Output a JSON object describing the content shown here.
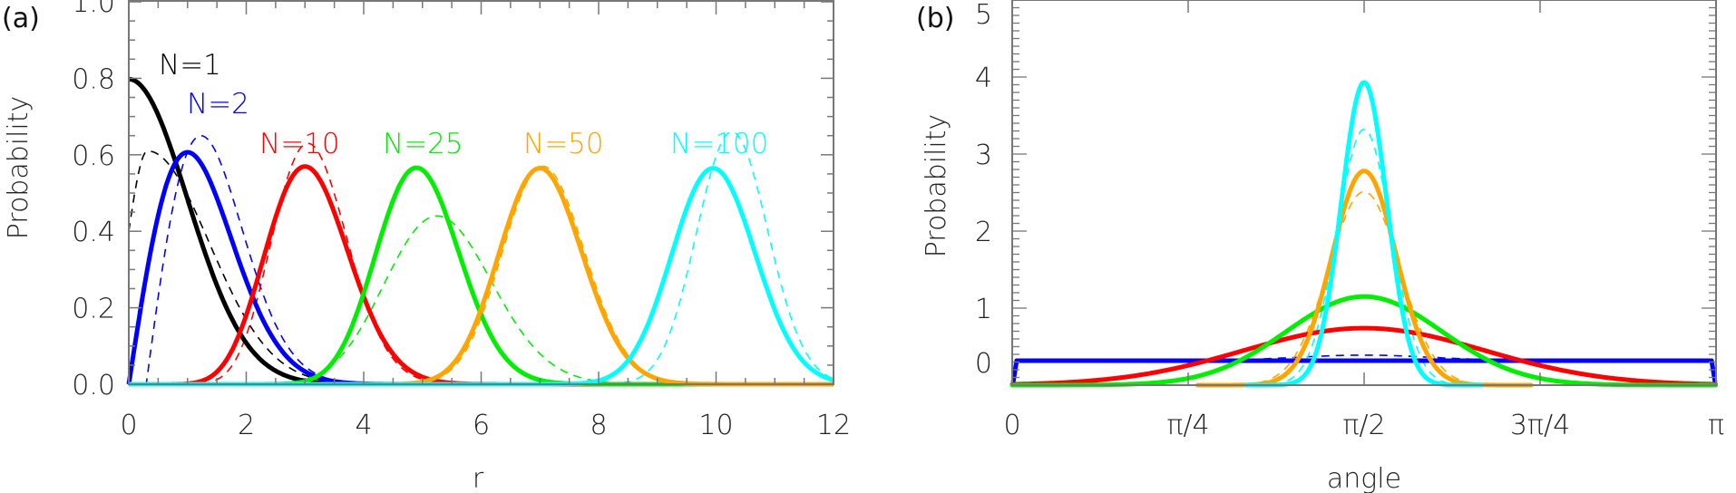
{
  "chart_data": [
    {
      "type": "line",
      "panel_label": "(a)",
      "xlabel": "r",
      "ylabel": "Probability",
      "xlim": [
        0,
        12
      ],
      "ylim": [
        0,
        1.0
      ],
      "xticks": [
        "0",
        "2",
        "4",
        "6",
        "8",
        "10",
        "12"
      ],
      "xtick_values": [
        0,
        2,
        4,
        6,
        8,
        10,
        12
      ],
      "yticks": [
        "0.0",
        "0.2",
        "0.4",
        "0.6",
        "0.8",
        "1.0"
      ],
      "ytick_values": [
        0,
        0.2,
        0.4,
        0.6,
        0.8,
        1.0
      ],
      "grid": false,
      "series": [
        {
          "name": "N=1",
          "label": "N=1",
          "N": 1,
          "color": "#000000",
          "solid": {
            "peak_x": 0.0,
            "peak_y": 0.8
          },
          "dashed": {
            "peak_x": 0.32,
            "peak_y": 0.61,
            "y_at_0": 0.4
          }
        },
        {
          "name": "N=2",
          "label": "N=2",
          "N": 2,
          "color": "#0000ff",
          "solid": {
            "peak_x": 1.0,
            "peak_y": 0.61
          },
          "dashed": {
            "peak_x": 1.23,
            "peak_y": 0.65
          }
        },
        {
          "name": "N=10",
          "label": "N=10",
          "N": 10,
          "color": "#ff0000",
          "solid": {
            "peak_x": 3.0,
            "peak_y": 0.57
          },
          "dashed": {
            "peak_x": 3.05,
            "peak_y": 0.63
          }
        },
        {
          "name": "N=25",
          "label": "N=25",
          "N": 25,
          "color": "#00ee00",
          "solid": {
            "peak_x": 4.9,
            "peak_y": 0.57
          },
          "dashed": {
            "peak_x": 5.25,
            "peak_y": 0.44
          }
        },
        {
          "name": "N=50",
          "label": "N=50",
          "N": 50,
          "color": "#ffa500",
          "solid": {
            "peak_x": 7.0,
            "peak_y": 0.57
          },
          "dashed": {
            "peak_x": 7.05,
            "peak_y": 0.57
          }
        },
        {
          "name": "N=100",
          "label": "N=100",
          "N": 100,
          "color": "#00ffff",
          "solid": {
            "peak_x": 9.95,
            "peak_y": 0.56
          },
          "dashed": {
            "peak_x": 10.27,
            "peak_y": 0.66
          }
        }
      ]
    },
    {
      "type": "line",
      "panel_label": "(b)",
      "xlabel": "angle",
      "ylabel": "Probability",
      "xlim_radians": [
        0,
        3.14159
      ],
      "ylim": [
        0,
        5
      ],
      "xticks": [
        "0",
        "π/4",
        "π/2",
        "3π/4",
        "π"
      ],
      "xtick_values": [
        0,
        0.7854,
        1.5708,
        2.3562,
        3.14159
      ],
      "yticks": [
        "0",
        "1",
        "2",
        "3",
        "4",
        "5"
      ],
      "ytick_values": [
        0,
        1,
        2,
        3,
        4,
        5
      ],
      "grid": false,
      "series": [
        {
          "N": 2,
          "color": "#0000ff",
          "solid": {
            "peak_x": 1.5708,
            "peak_y": 0.318,
            "shape": "uniform"
          },
          "dashed": {
            "peak_x": 1.5708,
            "peak_y": 0.39
          }
        },
        {
          "N": 10,
          "color": "#ff0000",
          "solid": {
            "peak_x": 1.5708,
            "peak_y": 0.74
          },
          "dashed": {
            "peak_x": 1.5708,
            "peak_y": 0.75
          }
        },
        {
          "N": 25,
          "color": "#00ee00",
          "solid": {
            "peak_x": 1.5708,
            "peak_y": 1.15
          },
          "dashed": {
            "peak_x": 1.5708,
            "peak_y": 1.17
          }
        },
        {
          "N": 50,
          "color": "#ffa500",
          "solid": {
            "peak_x": 1.5708,
            "peak_y": 2.78
          },
          "dashed": {
            "peak_x": 1.5708,
            "peak_y": 2.51
          }
        },
        {
          "N": 100,
          "color": "#00ffff",
          "solid": {
            "peak_x": 1.5708,
            "peak_y": 3.93
          },
          "dashed": {
            "peak_x": 1.5708,
            "peak_y": 3.32
          }
        }
      ]
    }
  ]
}
